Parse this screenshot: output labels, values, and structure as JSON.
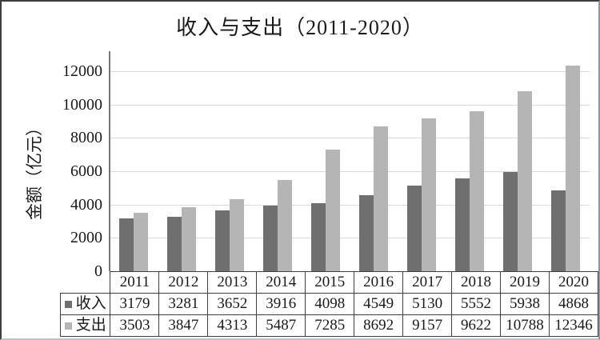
{
  "chart_data": {
    "type": "bar",
    "title": "收入与支出（2011-2020）",
    "categories": [
      "2011",
      "2012",
      "2013",
      "2014",
      "2015",
      "2016",
      "2017",
      "2018",
      "2019",
      "2020"
    ],
    "series": [
      {
        "name": "收入",
        "color": "#6f6f6f",
        "values": [
          3179,
          3281,
          3652,
          3916,
          4098,
          4549,
          5130,
          5552,
          5938,
          4868
        ]
      },
      {
        "name": "支出",
        "color": "#b5b5b5",
        "values": [
          3503,
          3847,
          4313,
          5487,
          7285,
          8692,
          9157,
          9622,
          10788,
          12346
        ]
      }
    ],
    "xlabel": "",
    "ylabel": "金额（亿元）",
    "yticks": [
      0,
      2000,
      4000,
      6000,
      8000,
      10000,
      12000
    ],
    "ylim": [
      0,
      13200
    ],
    "grid": true,
    "gridline_color": "#d9d9d9",
    "axis_color": "#767676",
    "legend_position": "data-table-left",
    "data_table_shown": true
  }
}
